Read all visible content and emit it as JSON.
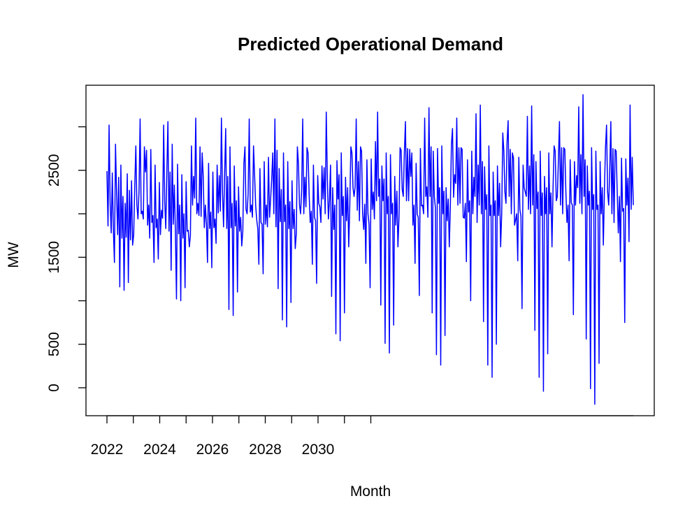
{
  "chart_data": {
    "type": "line",
    "title": "Predicted Operational Demand",
    "xlabel": "Month",
    "ylabel": "MW",
    "x_ticks": [
      "2022",
      "2024",
      "2026",
      "2028",
      "2030"
    ],
    "y_ticks": [
      "0",
      "500",
      "1500",
      "2500"
    ],
    "y_ticks_unlabeled": [
      1000,
      2000,
      3000
    ],
    "x_range": [
      2022.0,
      2032.0
    ],
    "ylim": [
      -200,
      3500
    ],
    "grid": false,
    "legend": "none",
    "series": [
      {
        "color": "#0000ff",
        "x_start": "2022-01",
        "frequency": "weekly",
        "values": [
          2490,
          1860,
          3020,
          2120,
          1780,
          2470,
          1820,
          1440,
          2800,
          2250,
          1760,
          2420,
          1160,
          2560,
          1720,
          2200,
          1120,
          2120,
          1730,
          2460,
          1210,
          2270,
          1700,
          2380,
          1640,
          1760,
          2310,
          2780,
          2100,
          1940,
          2260,
          3090,
          2000,
          2030,
          1940,
          2770,
          2480,
          2730,
          1870,
          2100,
          1720,
          2740,
          1900,
          1980,
          1440,
          2560,
          1840,
          1940,
          1480,
          2360,
          1760,
          2040,
          1950,
          3020,
          2140,
          1830,
          2500,
          3060,
          1800,
          2480,
          1350,
          2800,
          1880,
          2330,
          1780,
          1020,
          2570,
          1770,
          2100,
          1000,
          2450,
          1720,
          2000,
          1150,
          2370,
          1800,
          1810,
          1620,
          1750,
          2780,
          2100,
          2430,
          2180,
          3100,
          2000,
          2120,
          1980,
          2770,
          1970,
          2700,
          2430,
          1840,
          2100,
          1880,
          1440,
          2580,
          1830,
          2020,
          1380,
          2480,
          1840,
          1940,
          1660,
          2560,
          2010,
          2440,
          2030,
          3100,
          2250,
          1850,
          2460,
          2980,
          1830,
          2430,
          900,
          2770,
          1840,
          2120,
          830,
          2550,
          1860,
          2150,
          1100,
          2310,
          1800,
          1960,
          1630,
          1800,
          2580,
          2770,
          2050,
          2000,
          2230,
          3090,
          2020,
          2100,
          1960,
          2780,
          2450,
          2100,
          1930,
          1830,
          1420,
          2520,
          1900,
          1880,
          1310,
          2600,
          1880,
          2100,
          1850,
          2650,
          1960,
          2170,
          2400,
          2700,
          2000,
          3090,
          1850,
          2730,
          1140,
          2520,
          1910,
          2280,
          780,
          2700,
          1910,
          2100,
          700,
          2600,
          1830,
          2140,
          980,
          2380,
          1830,
          2050,
          1600,
          1770,
          2770,
          2580,
          2100,
          2000,
          2270,
          3090,
          2000,
          2420,
          2080,
          2760,
          2700,
          2220,
          1900,
          2030,
          1420,
          2560,
          1960,
          1920,
          1200,
          2440,
          2120,
          2080,
          1900,
          2550,
          2170,
          2530,
          2000,
          3170,
          2420,
          1940,
          2150,
          2560,
          1050,
          2300,
          1820,
          2100,
          620,
          2610,
          2170,
          2450,
          540,
          2700,
          1980,
          2200,
          860,
          2420,
          1920,
          2300,
          1620,
          2100,
          2770,
          2700,
          2300,
          2200,
          2310,
          3090,
          2040,
          2600,
          1920,
          2770,
          2720,
          2000,
          1820,
          2110,
          1430,
          2620,
          2000,
          1880,
          1150,
          2630,
          2050,
          2250,
          1940,
          2830,
          2150,
          3170,
          2200,
          2400,
          950,
          2550,
          2150,
          2400,
          510,
          2700,
          2000,
          2200,
          400,
          2680,
          2000,
          2120,
          720,
          2430,
          1870,
          2260,
          1620,
          1960,
          2760,
          2730,
          2280,
          2200,
          2700,
          3060,
          2150,
          2750,
          2150,
          2740,
          2430,
          2700,
          1870,
          2100,
          1430,
          2580,
          2000,
          1960,
          1060,
          2750,
          2090,
          2100,
          2000,
          3100,
          2200,
          2310,
          1960,
          3220,
          2200,
          2770,
          860,
          2720,
          2200,
          2070,
          380,
          2750,
          2120,
          2300,
          260,
          2780,
          2000,
          2260,
          600,
          2300,
          1920,
          2170,
          1620,
          2090,
          2800,
          2980,
          2190,
          2450,
          2350,
          3100,
          2100,
          2760,
          2120,
          2760,
          2740,
          1960,
          1950,
          2120,
          1450,
          2620,
          2020,
          2150,
          1000,
          2720,
          2000,
          2420,
          2200,
          3150,
          1900,
          2560,
          2100,
          3250,
          2000,
          2600,
          760,
          2540,
          2050,
          2220,
          260,
          2780,
          1980,
          2100,
          120,
          2480,
          1980,
          2150,
          500,
          2550,
          1980,
          2350,
          1620,
          2000,
          2930,
          2720,
          2250,
          2120,
          2820,
          3070,
          2200,
          2740,
          2000,
          2700,
          2640,
          1870,
          1930,
          2000,
          1460,
          2650,
          2050,
          1970,
          910,
          2560,
          2300,
          2250,
          2200,
          3120,
          2050,
          2550,
          2000,
          3240,
          2100,
          2680,
          660,
          2600,
          2060,
          2250,
          120,
          2720,
          1980,
          2240,
          -40,
          2430,
          2000,
          2300,
          390,
          2700,
          2000,
          2240,
          1620,
          2300,
          2780,
          2720,
          2150,
          2200,
          2620,
          3060,
          2100,
          2760,
          2000,
          2760,
          2740,
          2240,
          1900,
          2100,
          1460,
          2620,
          2130,
          2100,
          840,
          2600,
          2100,
          2440,
          2300,
          3230,
          2120,
          2680,
          2000,
          3370,
          2200,
          2620,
          560,
          2550,
          2100,
          2260,
          -10,
          2760,
          2050,
          2220,
          -190,
          2720,
          2050,
          2100,
          280,
          2600,
          2000,
          2300,
          1640,
          2260,
          2760,
          3020,
          2250,
          2100,
          2500,
          3060,
          2000,
          2750,
          1900,
          2740,
          2720,
          2240,
          1780,
          2200,
          1450,
          2640,
          2030,
          2060,
          750,
          2630,
          2100,
          2410,
          1680,
          3250,
          2050,
          2650,
          2100
        ]
      }
    ]
  }
}
